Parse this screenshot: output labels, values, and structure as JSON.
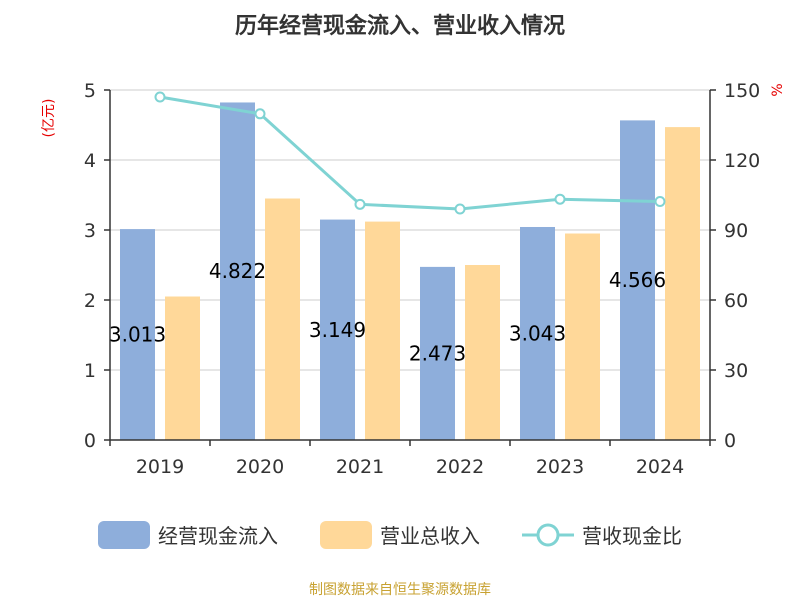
{
  "chart_data": {
    "type": "bar",
    "title": "历年经营现金流入、营业收入情况",
    "categories": [
      "2019",
      "2020",
      "2021",
      "2022",
      "2023",
      "2024"
    ],
    "series": [
      {
        "name": "经营现金流入",
        "type": "bar",
        "axis": "left",
        "color": "#8eaedb",
        "values": [
          3.013,
          4.822,
          3.149,
          2.473,
          3.043,
          4.566
        ]
      },
      {
        "name": "营业总收入",
        "type": "bar",
        "axis": "left",
        "color": "#ffd899",
        "values": [
          2.05,
          3.45,
          3.12,
          2.5,
          2.95,
          4.47
        ]
      },
      {
        "name": "营收现金比",
        "type": "line",
        "axis": "right",
        "color": "#7fd3d3",
        "values": [
          147.0,
          139.8,
          101.0,
          99.0,
          103.2,
          102.2
        ]
      }
    ],
    "data_labels": [
      "3.013",
      "4.822",
      "3.149",
      "2.473",
      "3.043",
      "4.566"
    ],
    "y_left": {
      "unit": "(亿元)",
      "min": 0,
      "max": 5,
      "ticks": [
        "0",
        "1",
        "2",
        "3",
        "4",
        "5"
      ]
    },
    "y_right": {
      "unit": "%",
      "min": 0,
      "max": 150,
      "ticks": [
        "0",
        "30",
        "60",
        "90",
        "120",
        "150"
      ]
    },
    "grid": true,
    "legend_position": "bottom",
    "source": "制图数据来自恒生聚源数据库"
  }
}
